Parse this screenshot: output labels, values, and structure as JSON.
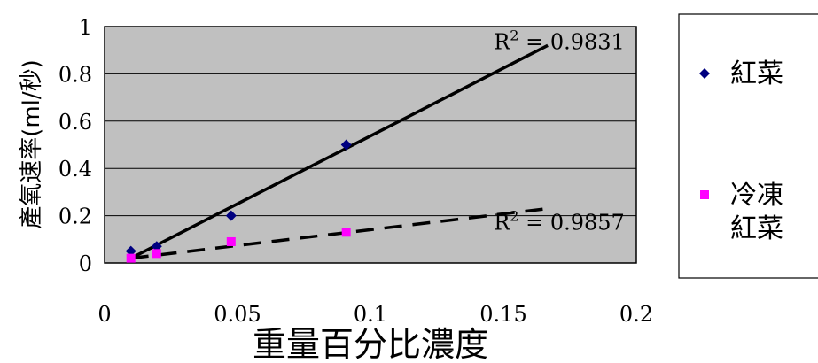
{
  "chart_data": {
    "type": "scatter",
    "xlabel": "重量百分比濃度",
    "ylabel": "產氧速率(ml/秒)",
    "xlim": [
      0,
      0.2
    ],
    "ylim": [
      0,
      1
    ],
    "x_ticks": [
      "0",
      "0.05",
      "0.1",
      "0.15",
      "0.2"
    ],
    "y_ticks": [
      "0",
      "0.2",
      "0.4",
      "0.6",
      "0.8",
      "1"
    ],
    "grid": "horizontal",
    "plot_background": "#c0c0c0",
    "legend_position": "right",
    "series": [
      {
        "name": "紅菜",
        "marker": "diamond",
        "color": "#000080",
        "x": [
          0.0099,
          0.0196,
          0.0476,
          0.0909
        ],
        "y": [
          0.05,
          0.07,
          0.2,
          0.5
        ],
        "trendline": {
          "style": "solid",
          "color": "#000000",
          "x": [
            0.0099,
            0.1667
          ],
          "y": [
            0.02,
            0.92
          ],
          "label": "R² = 0.9831",
          "r2_base": "R",
          "r2_exp": "2",
          "r2_rest": " = 0.9831"
        }
      },
      {
        "name": "冷凍紅菜",
        "legend_lines": [
          "冷凍",
          "紅菜"
        ],
        "marker": "square",
        "color": "#ff00ff",
        "x": [
          0.0099,
          0.0196,
          0.0476,
          0.0909
        ],
        "y": [
          0.02,
          0.04,
          0.09,
          0.13
        ],
        "trendline": {
          "style": "dashed",
          "color": "#000000",
          "x": [
            0.0099,
            0.1667
          ],
          "y": [
            0.02,
            0.23
          ],
          "label": "R² = 0.9857",
          "r2_base": "R",
          "r2_exp": "2",
          "r2_rest": " = 0.9857"
        }
      }
    ]
  }
}
